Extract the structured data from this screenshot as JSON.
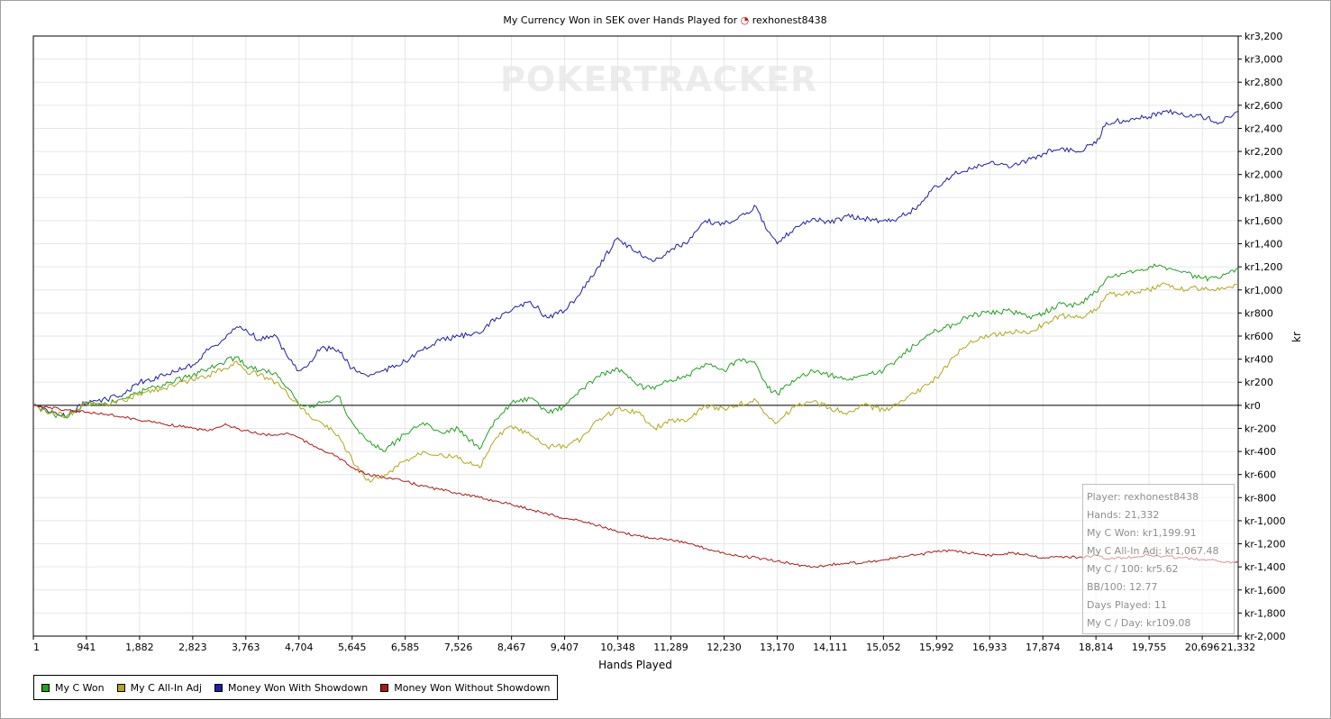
{
  "title": "My Currency Won in SEK over Hands Played for",
  "player": "rexhonest8438",
  "watermark": "POKERTRACKER",
  "xlabel": "Hands Played",
  "ylabel": "kr",
  "legend": [
    {
      "label": "My C Won",
      "color": "#22a022"
    },
    {
      "label": "My C All-In Adj",
      "color": "#b0a818"
    },
    {
      "label": "Money Won With Showdown",
      "color": "#1f1fa8"
    },
    {
      "label": "Money Won Without Showdown",
      "color": "#b01818"
    }
  ],
  "info": [
    "Player: rexhonest8438",
    "Hands: 21,332",
    "My C Won: kr1,199.91",
    "My C All-In Adj: kr1,067.48",
    "My C / 100: kr5.62",
    "BB/100: 12.77",
    "Days Played: 11",
    "My C / Day: kr109.08"
  ],
  "chart_data": {
    "type": "line",
    "xlim": [
      1,
      21332
    ],
    "ylim": [
      -2000,
      3200
    ],
    "x_ticks": [
      1,
      941,
      1882,
      2823,
      3763,
      4704,
      5645,
      6585,
      7526,
      8467,
      9407,
      10348,
      11289,
      12230,
      13170,
      14111,
      15052,
      15992,
      16933,
      17874,
      18814,
      19755,
      20696,
      21332
    ],
    "x_tick_labels": [
      "1",
      "941",
      "1,882",
      "2,823",
      "3,763",
      "4,704",
      "5,645",
      "6,585",
      "7,526",
      "8,467",
      "9,407",
      "10,348",
      "11,289",
      "12,230",
      "13,170",
      "14,111",
      "15,052",
      "15,992",
      "16,933",
      "17,874",
      "18,814",
      "19,755",
      "20,696",
      "21,332"
    ],
    "y_ticks": [
      3200,
      3000,
      2800,
      2600,
      2400,
      2200,
      2000,
      1800,
      1600,
      1400,
      1200,
      1000,
      800,
      600,
      400,
      200,
      0,
      -200,
      -400,
      -600,
      -800,
      -1000,
      -1200,
      -1400,
      -1600,
      -1800,
      -2000
    ],
    "y_tick_labels": [
      "kr3,200",
      "kr3,000",
      "kr2,800",
      "kr2,600",
      "kr2,400",
      "kr2,200",
      "kr2,000",
      "kr1,800",
      "kr1,600",
      "kr1,400",
      "kr1,200",
      "kr1,000",
      "kr800",
      "kr600",
      "kr400",
      "kr200",
      "kr0",
      "kr-200",
      "kr-400",
      "kr-600",
      "kr-800",
      "kr-1,000",
      "kr-1,200",
      "kr-1,400",
      "kr-1,600",
      "kr-1,800",
      "kr-2,000"
    ],
    "grid": true,
    "legend_position": "bottom-left",
    "series": [
      {
        "name": "Money Won With Showdown",
        "color": "#1f1fa8",
        "x": [
          1,
          300,
          600,
          941,
          1300,
          1600,
          1882,
          2300,
          2823,
          3100,
          3400,
          3600,
          3763,
          4000,
          4300,
          4500,
          4704,
          4900,
          5100,
          5400,
          5645,
          5900,
          6200,
          6585,
          6900,
          7200,
          7526,
          7900,
          8200,
          8467,
          8800,
          9100,
          9407,
          9700,
          10000,
          10348,
          10700,
          11000,
          11289,
          11600,
          11900,
          12230,
          12500,
          12800,
          13000,
          13170,
          13500,
          13800,
          14111,
          14400,
          14700,
          15052,
          15300,
          15600,
          15992,
          16300,
          16600,
          16933,
          17300,
          17600,
          17874,
          18200,
          18500,
          18814,
          19000,
          19300,
          19755,
          20000,
          20300,
          20696,
          21000,
          21332
        ],
        "y": [
          0,
          -60,
          -90,
          30,
          50,
          100,
          200,
          260,
          350,
          480,
          580,
          680,
          660,
          570,
          600,
          420,
          300,
          380,
          500,
          480,
          320,
          260,
          300,
          380,
          480,
          560,
          600,
          620,
          760,
          820,
          900,
          760,
          820,
          980,
          1200,
          1450,
          1320,
          1250,
          1350,
          1420,
          1600,
          1570,
          1640,
          1720,
          1510,
          1400,
          1550,
          1620,
          1580,
          1640,
          1620,
          1600,
          1620,
          1700,
          1900,
          2000,
          2050,
          2100,
          2060,
          2120,
          2180,
          2230,
          2200,
          2270,
          2450,
          2470,
          2500,
          2550,
          2520,
          2500,
          2450,
          2550
        ]
      },
      {
        "name": "My C Won",
        "color": "#22a022",
        "x": [
          1,
          300,
          600,
          941,
          1300,
          1600,
          1882,
          2300,
          2823,
          3100,
          3400,
          3600,
          3763,
          4000,
          4300,
          4500,
          4704,
          4900,
          5100,
          5400,
          5645,
          5900,
          6200,
          6585,
          6900,
          7200,
          7526,
          7900,
          8200,
          8467,
          8800,
          9100,
          9407,
          9700,
          10000,
          10348,
          10700,
          11000,
          11289,
          11600,
          11900,
          12230,
          12500,
          12800,
          13000,
          13170,
          13500,
          13800,
          14111,
          14400,
          14700,
          15052,
          15300,
          15600,
          15992,
          16300,
          16600,
          16933,
          17300,
          17600,
          17874,
          18200,
          18500,
          18814,
          19000,
          19300,
          19755,
          20000,
          20300,
          20696,
          21000,
          21332
        ],
        "y": [
          0,
          -70,
          -110,
          20,
          10,
          60,
          120,
          180,
          260,
          320,
          380,
          420,
          340,
          300,
          280,
          150,
          0,
          -20,
          20,
          80,
          -150,
          -300,
          -400,
          -250,
          -150,
          -230,
          -200,
          -380,
          -120,
          20,
          60,
          -60,
          -10,
          140,
          250,
          320,
          170,
          140,
          220,
          260,
          360,
          300,
          400,
          350,
          150,
          100,
          220,
          300,
          260,
          220,
          260,
          300,
          400,
          520,
          650,
          700,
          780,
          800,
          820,
          760,
          800,
          880,
          870,
          980,
          1100,
          1140,
          1200,
          1200,
          1160,
          1100,
          1100,
          1190
        ]
      },
      {
        "name": "My C All-In Adj",
        "color": "#b0a818",
        "x": [
          1,
          300,
          600,
          941,
          1300,
          1600,
          1882,
          2300,
          2823,
          3100,
          3400,
          3600,
          3763,
          4000,
          4300,
          4500,
          4704,
          4900,
          5100,
          5400,
          5645,
          5900,
          6200,
          6585,
          6900,
          7200,
          7526,
          7900,
          8200,
          8467,
          8800,
          9100,
          9407,
          9700,
          10000,
          10348,
          10700,
          11000,
          11289,
          11600,
          11900,
          12230,
          12500,
          12800,
          13000,
          13170,
          13500,
          13800,
          14111,
          14400,
          14700,
          15052,
          15300,
          15600,
          15992,
          16300,
          16600,
          16933,
          17300,
          17600,
          17874,
          18200,
          18500,
          18814,
          19000,
          19300,
          19755,
          20000,
          20300,
          20696,
          21000,
          21332
        ],
        "y": [
          0,
          -60,
          -90,
          20,
          0,
          40,
          100,
          150,
          220,
          260,
          320,
          380,
          300,
          260,
          200,
          100,
          0,
          -100,
          -150,
          -260,
          -470,
          -650,
          -620,
          -480,
          -400,
          -420,
          -460,
          -540,
          -280,
          -180,
          -260,
          -360,
          -360,
          -290,
          -130,
          -30,
          -60,
          -200,
          -130,
          -120,
          0,
          -30,
          10,
          40,
          -90,
          -150,
          0,
          30,
          -20,
          -80,
          0,
          -40,
          0,
          100,
          240,
          420,
          560,
          600,
          640,
          620,
          700,
          780,
          760,
          820,
          960,
          960,
          1000,
          1060,
          1000,
          1020,
          1000,
          1050
        ]
      },
      {
        "name": "Money Won Without Showdown",
        "color": "#b01818",
        "x": [
          1,
          300,
          600,
          941,
          1300,
          1600,
          1882,
          2300,
          2823,
          3100,
          3400,
          3600,
          3763,
          4000,
          4300,
          4500,
          4704,
          4900,
          5100,
          5400,
          5645,
          5900,
          6200,
          6585,
          6900,
          7200,
          7526,
          7900,
          8200,
          8467,
          8800,
          9100,
          9407,
          9700,
          10000,
          10348,
          10700,
          11000,
          11289,
          11600,
          11900,
          12230,
          12500,
          12800,
          13000,
          13170,
          13500,
          13800,
          14111,
          14400,
          14700,
          15052,
          15300,
          15600,
          15992,
          16300,
          16600,
          16933,
          17300,
          17600,
          17874,
          18200,
          18500,
          18814,
          19000,
          19300,
          19755,
          20000,
          20300,
          20696,
          21000,
          21332
        ],
        "y": [
          0,
          -20,
          -40,
          -60,
          -80,
          -100,
          -130,
          -160,
          -200,
          -220,
          -160,
          -200,
          -220,
          -250,
          -260,
          -240,
          -280,
          -340,
          -380,
          -450,
          -540,
          -600,
          -620,
          -660,
          -700,
          -730,
          -760,
          -800,
          -830,
          -860,
          -900,
          -940,
          -980,
          -1000,
          -1040,
          -1100,
          -1130,
          -1150,
          -1160,
          -1200,
          -1240,
          -1280,
          -1310,
          -1320,
          -1340,
          -1350,
          -1380,
          -1400,
          -1380,
          -1370,
          -1360,
          -1340,
          -1320,
          -1300,
          -1270,
          -1260,
          -1280,
          -1300,
          -1280,
          -1290,
          -1320,
          -1310,
          -1320,
          -1300,
          -1330,
          -1320,
          -1300,
          -1310,
          -1320,
          -1340,
          -1350,
          -1360
        ]
      }
    ]
  }
}
